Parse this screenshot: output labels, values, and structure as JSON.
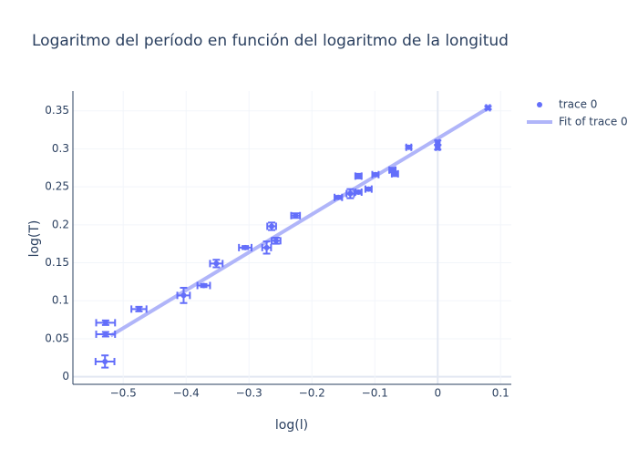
{
  "chart_data": {
    "type": "scatter",
    "title": "Logaritmo del período en función del logaritmo de la longitud",
    "x_label": "log(l)",
    "y_label": "log(T)",
    "xlim": [
      -0.58,
      0.117
    ],
    "ylim": [
      -0.01,
      0.376
    ],
    "xticks": [
      {
        "value": -0.5,
        "label": "−0.5"
      },
      {
        "value": -0.4,
        "label": "−0.4"
      },
      {
        "value": -0.3,
        "label": "−0.3"
      },
      {
        "value": -0.2,
        "label": "−0.2"
      },
      {
        "value": -0.1,
        "label": "−0.1"
      },
      0,
      0.1
    ],
    "yticks": [
      0,
      0.05,
      0.1,
      0.15,
      0.2,
      0.25,
      0.3,
      0.35
    ],
    "grid": true,
    "legend": "top-right",
    "series": [
      {
        "name": "trace 0",
        "type": "scatter",
        "color": "#636efa",
        "x": [
          -0.529,
          -0.528,
          -0.528,
          -0.475,
          -0.404,
          -0.372,
          -0.352,
          -0.306,
          -0.272,
          -0.257,
          -0.264,
          -0.226,
          -0.158,
          -0.139,
          -0.126,
          -0.11,
          -0.126,
          -0.099,
          -0.072,
          -0.068,
          -0.046,
          0.0,
          0.0,
          0.08
        ],
        "values": [
          0.02,
          0.071,
          0.056,
          0.089,
          0.107,
          0.12,
          0.149,
          0.17,
          0.17,
          0.179,
          0.198,
          0.212,
          0.236,
          0.241,
          0.243,
          0.247,
          0.264,
          0.266,
          0.272,
          0.267,
          0.302,
          0.308,
          0.302,
          0.354
        ],
        "x_error": [
          0.015,
          0.015,
          0.015,
          0.012,
          0.01,
          0.01,
          0.01,
          0.01,
          0.007,
          0.007,
          0.007,
          0.007,
          0.006,
          0.006,
          0.005,
          0.005,
          0.005,
          0.005,
          0.005,
          0.005,
          0.004,
          0.003,
          0.003,
          0.003
        ],
        "y_error": [
          0.008,
          0.003,
          0.003,
          0.003,
          0.01,
          0.002,
          0.005,
          0.002,
          0.008,
          0.004,
          0.005,
          0.003,
          0.002,
          0.006,
          0.002,
          0.002,
          0.003,
          0.002,
          0.003,
          0.003,
          0.002,
          0.003,
          0.003,
          0.002
        ]
      },
      {
        "name": "Fit of trace 0",
        "type": "line",
        "color": "#b0b5f9",
        "x": [
          -0.52,
          0.083
        ],
        "values": [
          0.054,
          0.355
        ]
      }
    ]
  }
}
